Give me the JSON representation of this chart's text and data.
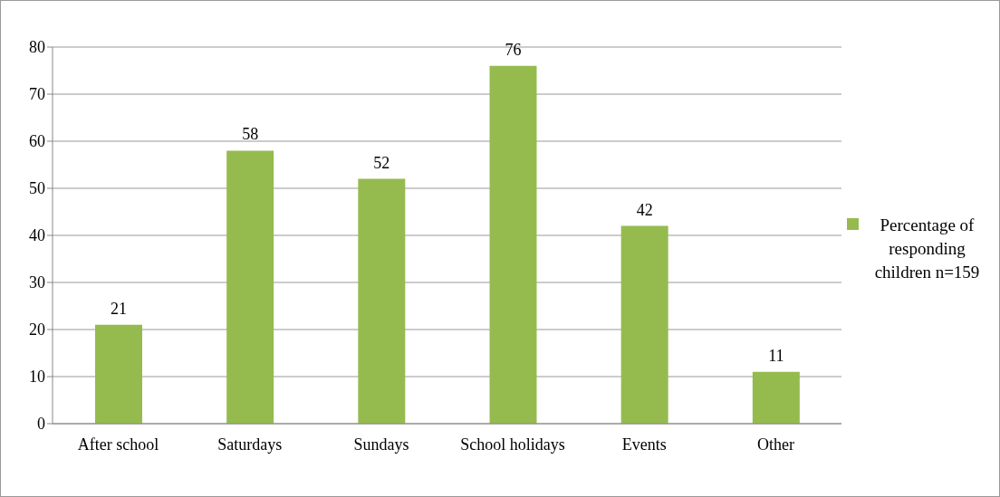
{
  "chart_data": {
    "type": "bar",
    "categories": [
      "After school",
      "Saturdays",
      "Sundays",
      "School holidays",
      "Events",
      "Other"
    ],
    "series": [
      {
        "name": "Percentage of responding children n=159",
        "color": "#95bb4f",
        "values": [
          21,
          58,
          52,
          76,
          42,
          11
        ]
      }
    ],
    "ylim": [
      0,
      80
    ],
    "yticks": [
      0,
      10,
      20,
      30,
      40,
      50,
      60,
      70,
      80
    ],
    "grid": "y",
    "legend": "right",
    "data_labels": true
  }
}
